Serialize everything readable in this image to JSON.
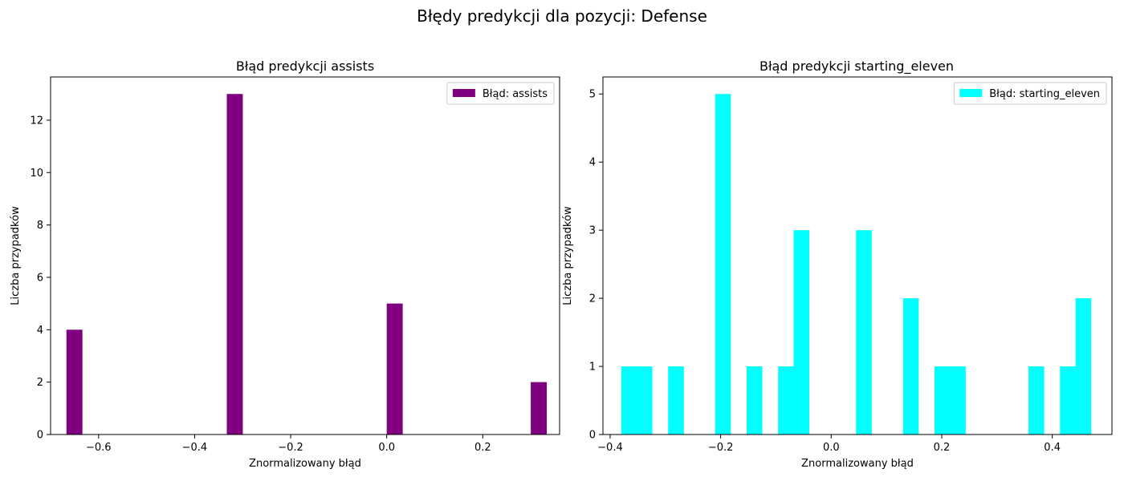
{
  "figure": {
    "suptitle": "Błędy predykcji dla pozycji: Defense"
  },
  "chart_data": [
    {
      "type": "bar",
      "title": "Błąd predykcji assists",
      "xlabel": "Znormalizowany błąd",
      "ylabel": "Liczba przypadków",
      "xlim": [
        -0.7,
        0.36
      ],
      "ylim": [
        0,
        13.65
      ],
      "xticks": [
        -0.6,
        -0.4,
        -0.2,
        0.0,
        0.2
      ],
      "xtick_labels": [
        "−0.6",
        "−0.4",
        "−0.2",
        "0.0",
        "0.2"
      ],
      "yticks": [
        0,
        2,
        4,
        6,
        8,
        10,
        12
      ],
      "yticks_labels": [
        "0",
        "2",
        "4",
        "6",
        "8",
        "10",
        "12"
      ],
      "bin_width": 0.0333,
      "bars": [
        {
          "x": -0.667,
          "value": 4
        },
        {
          "x": -0.333,
          "value": 13
        },
        {
          "x": 0.0,
          "value": 5
        },
        {
          "x": 0.3,
          "value": 2
        }
      ],
      "legend": {
        "label": "Błąd: assists",
        "position": "upper right"
      },
      "color": "#800080",
      "grid": false
    },
    {
      "type": "bar",
      "title": "Błąd predykcji starting_eleven",
      "xlabel": "Znormalizowany błąd",
      "ylabel": "Liczba przypadków",
      "xlim": [
        -0.413,
        0.508
      ],
      "ylim": [
        0,
        5.25
      ],
      "xticks": [
        -0.4,
        -0.2,
        0.0,
        0.2,
        0.4
      ],
      "xtick_labels": [
        "−0.4",
        "−0.2",
        "0.0",
        "0.2",
        "0.4"
      ],
      "yticks": [
        0,
        1,
        2,
        3,
        4,
        5
      ],
      "yticks_labels": [
        "0",
        "1",
        "2",
        "3",
        "4",
        "5"
      ],
      "bin_width": 0.0284,
      "bars": [
        {
          "x": -0.38,
          "value": 1
        },
        {
          "x": -0.352,
          "value": 1
        },
        {
          "x": -0.295,
          "value": 1
        },
        {
          "x": -0.21,
          "value": 5
        },
        {
          "x": -0.153,
          "value": 1
        },
        {
          "x": -0.096,
          "value": 1
        },
        {
          "x": -0.068,
          "value": 3
        },
        {
          "x": 0.045,
          "value": 3
        },
        {
          "x": 0.13,
          "value": 2
        },
        {
          "x": 0.187,
          "value": 1
        },
        {
          "x": 0.215,
          "value": 1
        },
        {
          "x": 0.357,
          "value": 1
        },
        {
          "x": 0.414,
          "value": 1
        },
        {
          "x": 0.442,
          "value": 2
        }
      ],
      "legend": {
        "label": "Błąd: starting_eleven",
        "position": "upper right"
      },
      "color": "#00FFFF",
      "grid": false
    }
  ]
}
